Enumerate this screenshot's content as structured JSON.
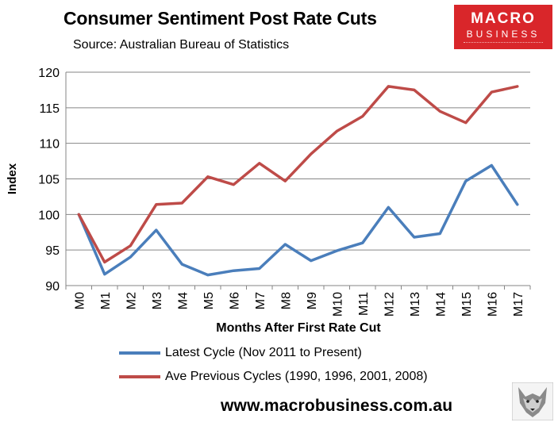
{
  "header": {
    "title": "Consumer Sentiment Post Rate Cuts",
    "subtitle": "Source: Australian Bureau of Statistics"
  },
  "logo": {
    "line1": "MACRO",
    "line2": "BUSINESS"
  },
  "footer": {
    "website": "www.macrobusiness.com.au"
  },
  "colors": {
    "latest": "#4a7ebb",
    "previous": "#be4b48",
    "logo_bg": "#d9262a"
  },
  "chart_data": {
    "type": "line",
    "title": "Consumer Sentiment Post Rate Cuts",
    "xlabel": "Months After First Rate Cut",
    "ylabel": "Index",
    "ylim": [
      90,
      120
    ],
    "yticks": [
      90,
      95,
      100,
      105,
      110,
      115,
      120
    ],
    "grid": true,
    "legend_position": "bottom",
    "categories": [
      "M0",
      "M1",
      "M2",
      "M3",
      "M4",
      "M5",
      "M6",
      "M7",
      "M8",
      "M9",
      "M10",
      "M11",
      "M12",
      "M13",
      "M14",
      "M15",
      "M16",
      "M17"
    ],
    "series": [
      {
        "name": "Latest Cycle (Nov 2011 to Present)",
        "color": "#4a7ebb",
        "values": [
          100.0,
          91.6,
          94.0,
          97.8,
          93.0,
          91.5,
          92.1,
          92.4,
          95.8,
          93.5,
          94.9,
          96.0,
          101.0,
          96.8,
          97.3,
          104.7,
          106.9,
          101.4
        ]
      },
      {
        "name": "Ave Previous Cycles (1990, 1996, 2001, 2008)",
        "color": "#be4b48",
        "values": [
          100.0,
          93.3,
          95.6,
          101.4,
          101.6,
          105.3,
          104.2,
          107.2,
          104.7,
          108.5,
          111.7,
          113.8,
          118.0,
          117.5,
          114.5,
          112.9,
          117.2,
          118.0
        ]
      }
    ]
  }
}
